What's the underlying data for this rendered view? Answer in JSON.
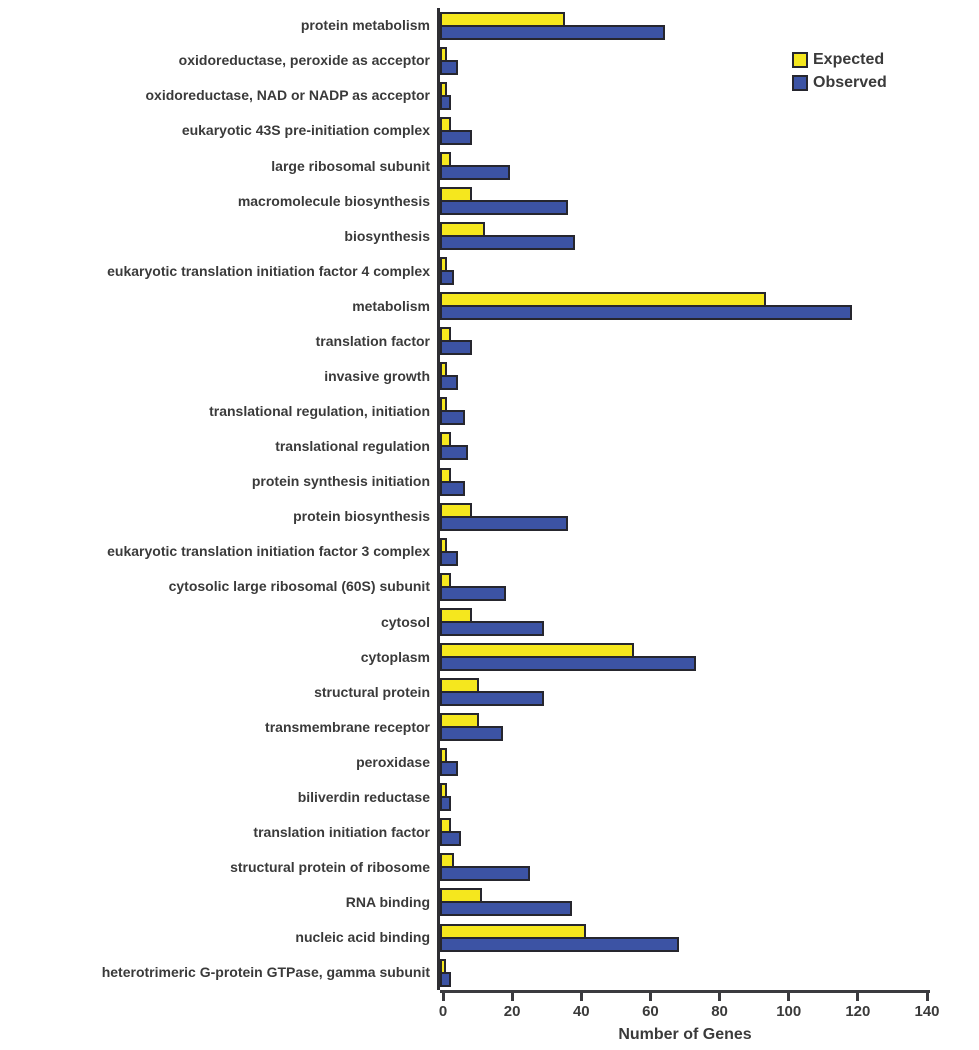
{
  "chart_data": {
    "type": "bar",
    "orientation": "horizontal",
    "title": "",
    "xlabel": "Number of Genes",
    "ylabel": "",
    "xlim": [
      0,
      140
    ],
    "xticks": [
      0,
      20,
      40,
      60,
      80,
      100,
      120,
      140
    ],
    "grid": false,
    "legend_position": "top-right",
    "colors": {
      "expected": "#F5E71E",
      "observed": "#3C53A4",
      "bar_outline": "#26262E",
      "axis": "#3B3B3F",
      "text": "#3A3A3A"
    },
    "categories": [
      "protein metabolism",
      "oxidoreductase, peroxide as acceptor",
      "oxidoreductase, NAD or NADP as acceptor",
      "eukaryotic 43S pre-initiation complex",
      "large ribosomal subunit",
      "macromolecule biosynthesis",
      "biosynthesis",
      "eukaryotic translation initiation factor 4 complex",
      "metabolism",
      "translation factor",
      "invasive growth",
      "translational regulation, initiation",
      "translational regulation",
      "protein synthesis initiation",
      "protein biosynthesis",
      "eukaryotic translation initiation factor 3 complex",
      "cytosolic large ribosomal (60S) subunit",
      "cytosol",
      "cytoplasm",
      "structural protein",
      "transmembrane receptor",
      "peroxidase",
      "biliverdin reductase",
      "translation initiation factor",
      "structural protein of ribosome",
      "RNA binding",
      "nucleic acid binding",
      "heterotrimeric G-protein GTPase, gamma subunit"
    ],
    "series": [
      {
        "name": "Expected",
        "values": [
          35,
          1,
          1,
          2,
          2,
          8,
          12,
          1,
          93,
          2,
          1,
          1,
          2,
          2,
          8,
          1,
          2,
          8,
          55,
          10,
          10,
          1,
          1,
          2,
          3,
          11,
          41,
          0.5
        ]
      },
      {
        "name": "Observed",
        "values": [
          64,
          4,
          2,
          8,
          19,
          36,
          38,
          3,
          118,
          8,
          4,
          6,
          7,
          6,
          36,
          4,
          18,
          29,
          73,
          29,
          17,
          4,
          2,
          5,
          25,
          37,
          68,
          2
        ]
      }
    ]
  }
}
